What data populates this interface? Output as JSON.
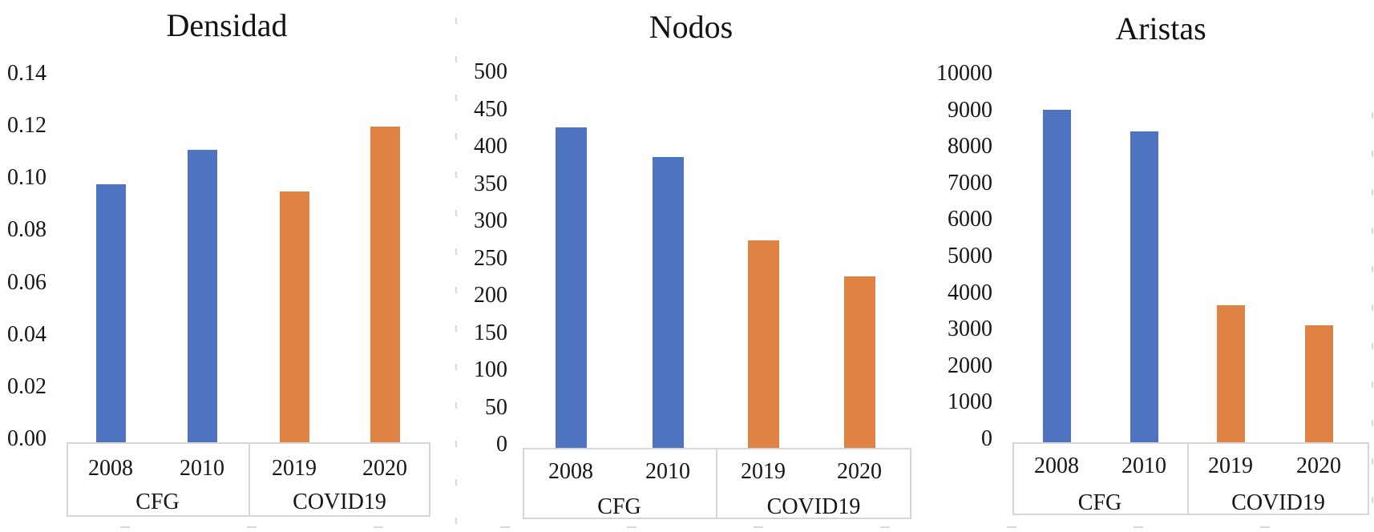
{
  "figure": {
    "background": "#ffffff",
    "text_color": "#1c1c1c",
    "box_border_color": "#d6d6d6",
    "gridline_color": "#d9d9d9",
    "series_colors": {
      "cfg": "#4D73C1",
      "covid19": "#DF8244"
    }
  },
  "chart_data": [
    {
      "type": "bar",
      "title": "Densidad",
      "categories": [
        "2008",
        "2010",
        "2019",
        "2020"
      ],
      "category_groups": [
        {
          "label": "CFG",
          "categories": [
            "2008",
            "2010"
          ]
        },
        {
          "label": "COVID19",
          "categories": [
            "2019",
            "2020"
          ]
        }
      ],
      "values": [
        0.099,
        0.112,
        0.096,
        0.121
      ],
      "series_of_bar": [
        "cfg",
        "cfg",
        "covid19",
        "covid19"
      ],
      "y_ticks": [
        "0.14",
        "0.12",
        "0.10",
        "0.08",
        "0.06",
        "0.04",
        "0.02",
        "0.00"
      ],
      "ylim": [
        0,
        0.14
      ],
      "xlabel": "",
      "ylabel": "",
      "grid": false,
      "legend": "none"
    },
    {
      "type": "bar",
      "title": "Nodos",
      "categories": [
        "2008",
        "2010",
        "2019",
        "2020"
      ],
      "category_groups": [
        {
          "label": "CFG",
          "categories": [
            "2008",
            "2010"
          ]
        },
        {
          "label": "COVID19",
          "categories": [
            "2019",
            "2020"
          ]
        }
      ],
      "values": [
        430,
        390,
        278,
        230
      ],
      "series_of_bar": [
        "cfg",
        "cfg",
        "covid19",
        "covid19"
      ],
      "y_ticks": [
        "500",
        "450",
        "400",
        "350",
        "300",
        "250",
        "200",
        "150",
        "100",
        "50",
        "0"
      ],
      "ylim": [
        0,
        500
      ],
      "xlabel": "",
      "ylabel": "",
      "grid": false,
      "legend": "none"
    },
    {
      "type": "bar",
      "title": "Aristas",
      "categories": [
        "2008",
        "2010",
        "2019",
        "2020"
      ],
      "category_groups": [
        {
          "label": "CFG",
          "categories": [
            "2008",
            "2010"
          ]
        },
        {
          "label": "COVID19",
          "categories": [
            "2019",
            "2020"
          ]
        }
      ],
      "values": [
        9100,
        8500,
        3750,
        3200
      ],
      "series_of_bar": [
        "cfg",
        "cfg",
        "covid19",
        "covid19"
      ],
      "y_ticks": [
        "10000",
        "9000",
        "8000",
        "7000",
        "6000",
        "5000",
        "4000",
        "3000",
        "2000",
        "1000",
        "0"
      ],
      "ylim": [
        0,
        10000
      ],
      "xlabel": "",
      "ylabel": "",
      "grid": false,
      "legend": "none"
    }
  ]
}
